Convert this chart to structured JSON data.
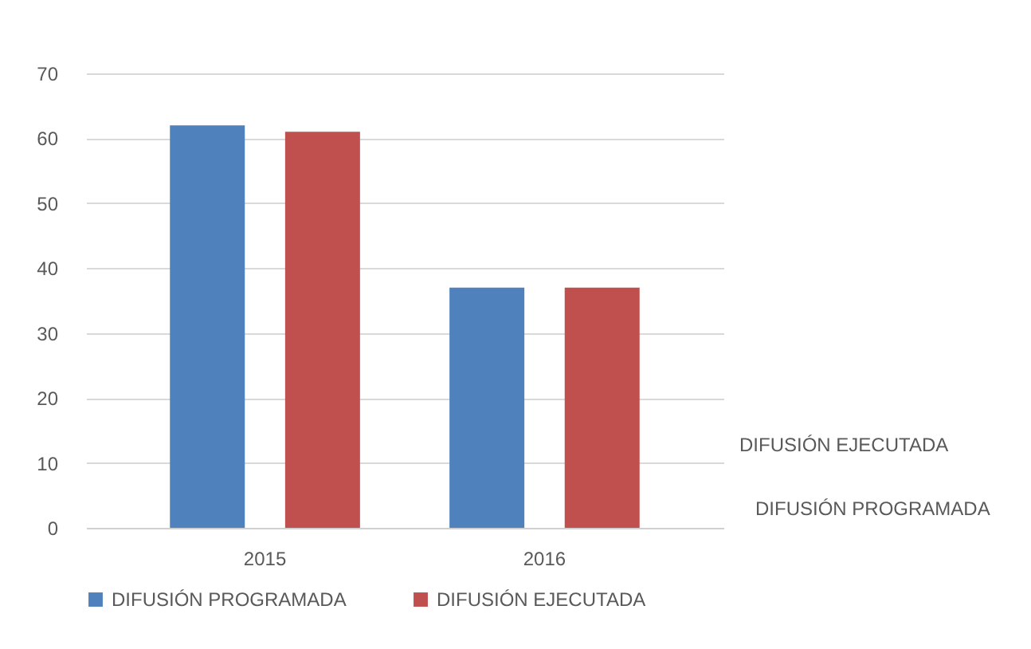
{
  "chart_data": {
    "type": "bar",
    "categories": [
      "2015",
      "2016"
    ],
    "series": [
      {
        "name": "DIFUSIÓN PROGRAMADA",
        "color": "#4f81bd",
        "values": [
          62,
          37
        ]
      },
      {
        "name": "DIFUSIÓN EJECUTADA",
        "color": "#c0504d",
        "values": [
          61,
          37
        ]
      }
    ],
    "ylim": [
      0,
      70
    ],
    "yticks": [
      0,
      10,
      20,
      30,
      40,
      50,
      60,
      70
    ],
    "grid": "y",
    "legend": "bottom"
  }
}
